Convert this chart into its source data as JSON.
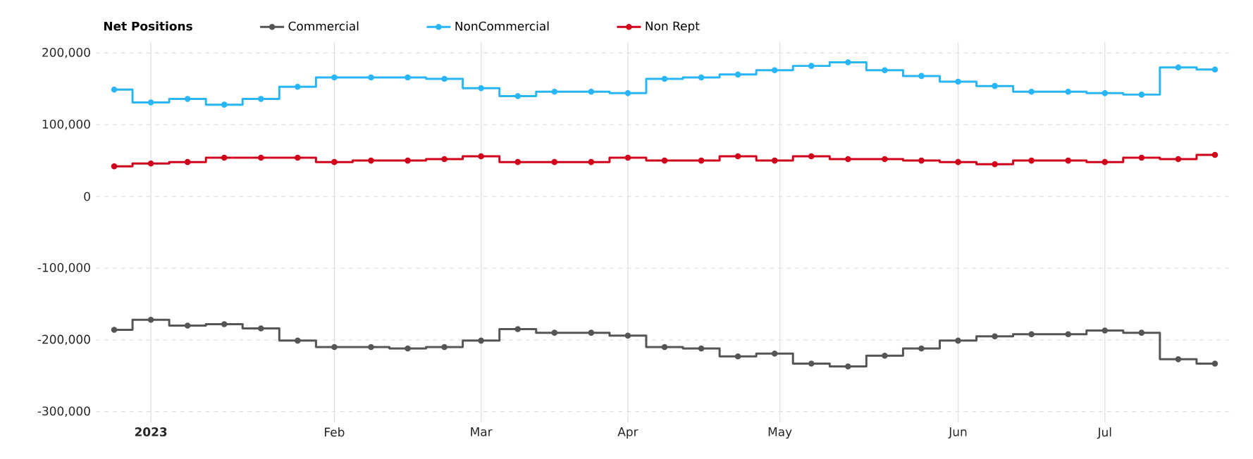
{
  "chart_data": {
    "type": "step",
    "legend_title": "Net Positions",
    "legend": "top",
    "marker": "circle",
    "grid": true,
    "x": [
      "2022-12-25",
      "2023-01-01",
      "2023-01-08",
      "2023-01-15",
      "2023-01-22",
      "2023-01-29",
      "2023-02-05",
      "2023-02-12",
      "2023-02-19",
      "2023-02-26",
      "2023-03-05",
      "2023-03-12",
      "2023-03-19",
      "2023-03-26",
      "2023-04-02",
      "2023-04-09",
      "2023-04-16",
      "2023-04-23",
      "2023-04-30",
      "2023-05-07",
      "2023-05-14",
      "2023-05-21",
      "2023-05-28",
      "2023-06-04",
      "2023-06-11",
      "2023-06-18",
      "2023-06-25",
      "2023-07-02",
      "2023-07-09",
      "2023-07-16",
      "2023-07-23"
    ],
    "series": [
      {
        "name": "Commercial",
        "color": "#555555",
        "values": [
          -186000,
          -172000,
          -180000,
          -178000,
          -184000,
          -201000,
          -210000,
          -210000,
          -212000,
          -210000,
          -201000,
          -185000,
          -190000,
          -190000,
          -194000,
          -210000,
          -212000,
          -223000,
          -219000,
          -233000,
          -237000,
          -222000,
          -212000,
          -201000,
          -195000,
          -192000,
          -192000,
          -187000,
          -190000,
          -227000,
          -233000
        ]
      },
      {
        "name": "NonCommercial",
        "color": "#29b6f6",
        "values": [
          149000,
          131000,
          136000,
          128000,
          136000,
          153000,
          166000,
          166000,
          166000,
          164000,
          151000,
          140000,
          146000,
          146000,
          144000,
          164000,
          166000,
          170000,
          176000,
          182000,
          187000,
          176000,
          168000,
          160000,
          154000,
          146000,
          146000,
          144000,
          142000,
          180000,
          177000
        ]
      },
      {
        "name": "Non Rept",
        "color": "#d0021b",
        "values": [
          42000,
          46000,
          48000,
          54000,
          54000,
          54000,
          48000,
          50000,
          50000,
          52000,
          56000,
          48000,
          48000,
          48000,
          54000,
          50000,
          50000,
          56000,
          50000,
          56000,
          52000,
          52000,
          50000,
          48000,
          45000,
          50000,
          50000,
          48000,
          54000,
          52000,
          58000
        ]
      }
    ],
    "xlim": [
      "2022-12-21T12:00",
      "2023-07-26T12:00"
    ],
    "xticks": [
      {
        "value": "2023-01-01",
        "label": "2023"
      },
      {
        "value": "2023-02-05",
        "label": "Feb"
      },
      {
        "value": "2023-03-05",
        "label": "Mar"
      },
      {
        "value": "2023-04-02",
        "label": "Apr"
      },
      {
        "value": "2023-05-01",
        "label": "May"
      },
      {
        "value": "2023-06-04",
        "label": "Jun"
      },
      {
        "value": "2023-07-02",
        "label": "Jul"
      }
    ],
    "ylim": [
      -315000,
      215000
    ],
    "yticks": [
      {
        "value": 200000,
        "label": "200,000"
      },
      {
        "value": 100000,
        "label": "100,000"
      },
      0,
      {
        "value": -100000,
        "label": "-100,000"
      },
      {
        "value": -200000,
        "label": "-200,000"
      },
      {
        "value": -300000,
        "label": "-300,000"
      }
    ]
  }
}
